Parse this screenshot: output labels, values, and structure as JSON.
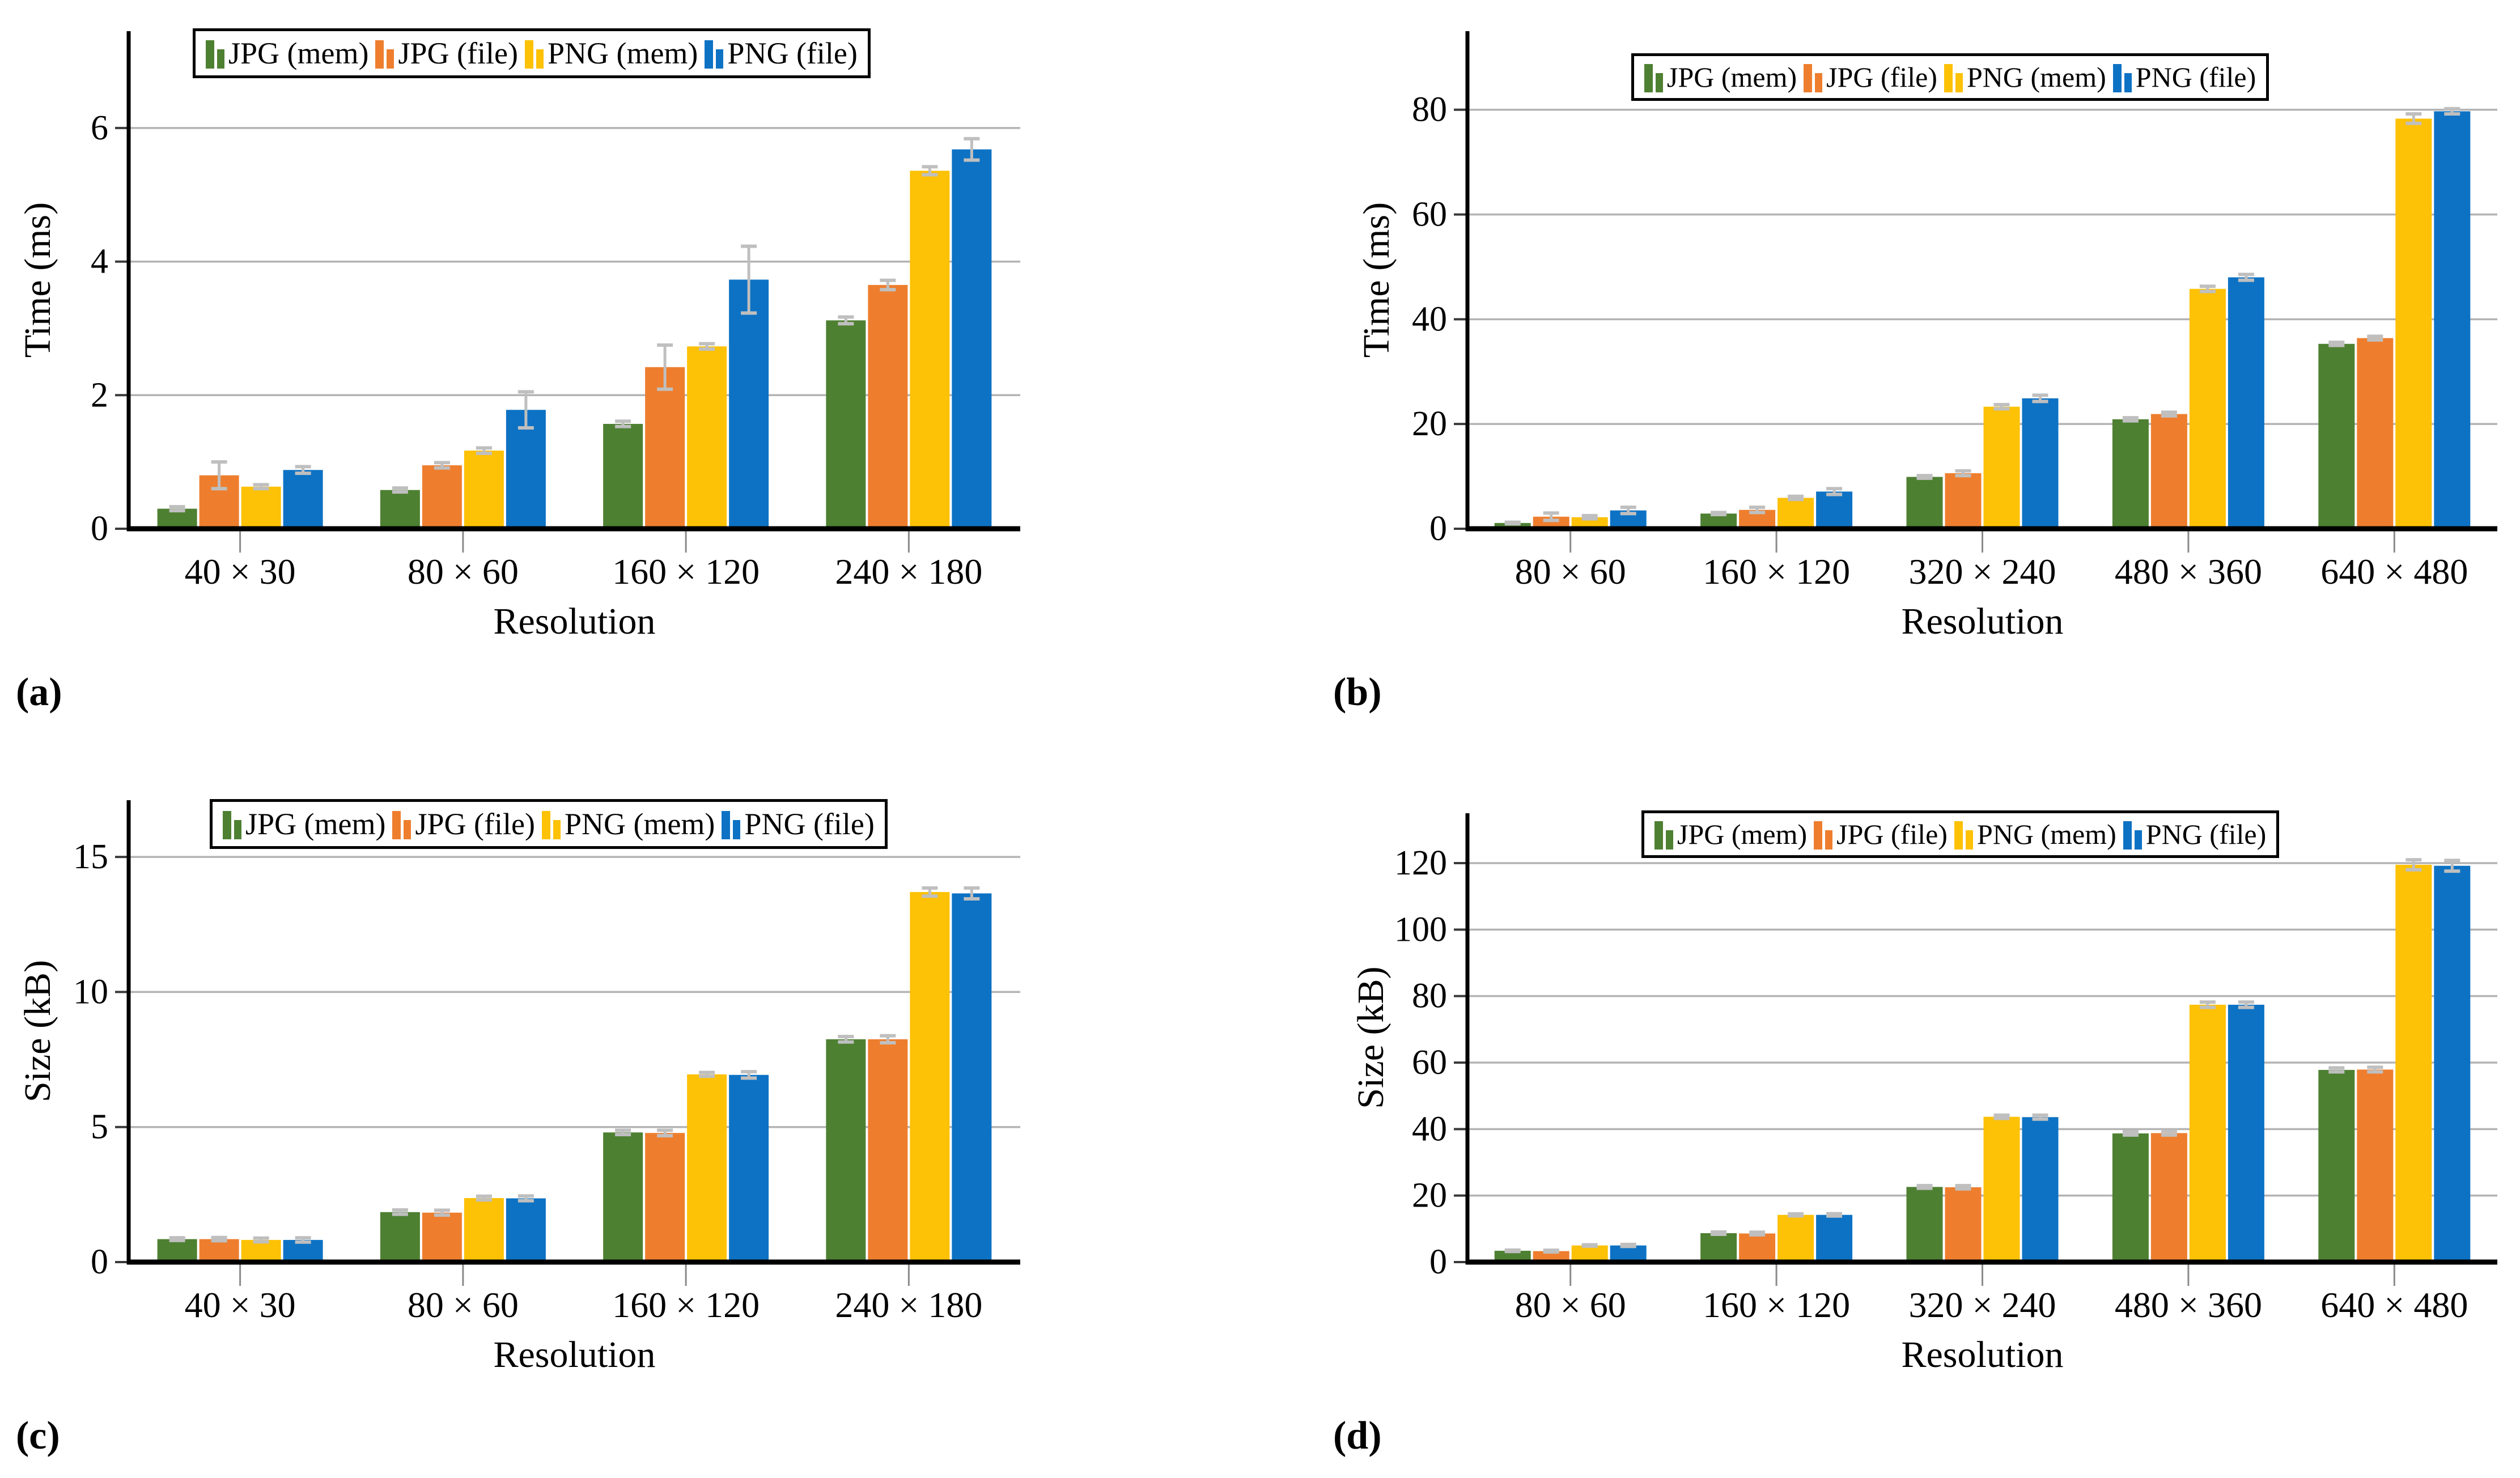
{
  "page": {
    "background": "#ffffff"
  },
  "palette": {
    "jpg_mem": "#4E8032",
    "jpg_file": "#EE7E2E",
    "png_mem": "#FDC105",
    "png_file": "#0D72C4",
    "error_bar": "#BFBFBF",
    "gridline": "#B3B3B3",
    "axis": "#000000",
    "x_tick": "#8A8A8A",
    "y_tick": "#3A3A3A"
  },
  "legend_labels": [
    "JPG (mem)",
    "JPG (file)",
    "PNG (mem)",
    "PNG (file)"
  ],
  "chart_data": [
    {
      "panel_label": "(a)",
      "type": "bar",
      "xlabel": "Resolution",
      "ylabel": "Time (ms)",
      "categories": [
        "40 × 30",
        "80 × 60",
        "160 × 120",
        "240 × 180"
      ],
      "yticks": [
        0,
        2,
        4,
        6
      ],
      "ylim": [
        0,
        7.45
      ],
      "grid": true,
      "error_bars": true,
      "legend_position": "top-inside",
      "series": [
        {
          "name": "JPG (mem)",
          "color_key": "jpg_mem",
          "values": [
            0.3,
            0.58,
            1.57,
            3.12
          ],
          "errors": [
            0.03,
            0.03,
            0.04,
            0.05
          ]
        },
        {
          "name": "JPG (file)",
          "color_key": "jpg_file",
          "values": [
            0.8,
            0.95,
            2.42,
            3.65
          ],
          "errors": [
            0.2,
            0.04,
            0.33,
            0.07
          ]
        },
        {
          "name": "PNG (mem)",
          "color_key": "png_mem",
          "values": [
            0.63,
            1.17,
            2.73,
            5.36
          ],
          "errors": [
            0.03,
            0.04,
            0.04,
            0.06
          ]
        },
        {
          "name": "PNG (file)",
          "color_key": "png_file",
          "values": [
            0.88,
            1.78,
            3.73,
            5.68
          ],
          "errors": [
            0.05,
            0.27,
            0.5,
            0.16
          ]
        }
      ]
    },
    {
      "panel_label": "(b)",
      "type": "bar",
      "xlabel": "Resolution",
      "ylabel": "Time (ms)",
      "categories": [
        "80 × 60",
        "160 × 120",
        "320 × 240",
        "480 × 360",
        "640 × 480"
      ],
      "yticks": [
        0,
        20,
        40,
        60,
        80
      ],
      "ylim": [
        0,
        95
      ],
      "grid": true,
      "error_bars": true,
      "legend_position": "top-inside",
      "series": [
        {
          "name": "JPG (mem)",
          "color_key": "jpg_mem",
          "values": [
            1.1,
            2.9,
            9.9,
            20.9,
            35.3
          ],
          "errors": [
            0.15,
            0.2,
            0.25,
            0.3,
            0.3
          ]
        },
        {
          "name": "JPG (file)",
          "color_key": "jpg_file",
          "values": [
            2.3,
            3.6,
            10.6,
            21.9,
            36.4
          ],
          "errors": [
            0.7,
            0.5,
            0.45,
            0.35,
            0.35
          ]
        },
        {
          "name": "PNG (mem)",
          "color_key": "png_mem",
          "values": [
            2.2,
            5.9,
            23.3,
            45.8,
            78.3
          ],
          "errors": [
            0.3,
            0.3,
            0.4,
            0.5,
            0.9
          ]
        },
        {
          "name": "PNG (file)",
          "color_key": "png_file",
          "values": [
            3.5,
            7.1,
            24.9,
            48.0,
            79.7
          ],
          "errors": [
            0.6,
            0.55,
            0.6,
            0.55,
            0.5
          ]
        }
      ]
    },
    {
      "panel_label": "(c)",
      "type": "bar",
      "xlabel": "Resolution",
      "ylabel": "Size (kB)",
      "categories": [
        "40 × 30",
        "80 × 60",
        "160 × 120",
        "240 × 180"
      ],
      "yticks": [
        0,
        5,
        10,
        15
      ],
      "ylim": [
        0,
        17.1
      ],
      "grid": true,
      "error_bars": true,
      "legend_position": "top-inside",
      "series": [
        {
          "name": "JPG (mem)",
          "color_key": "jpg_mem",
          "values": [
            0.85,
            1.85,
            4.8,
            8.25
          ],
          "errors": [
            0.05,
            0.08,
            0.08,
            0.1
          ]
        },
        {
          "name": "JPG (file)",
          "color_key": "jpg_file",
          "values": [
            0.85,
            1.83,
            4.78,
            8.25
          ],
          "errors": [
            0.06,
            0.09,
            0.1,
            0.13
          ]
        },
        {
          "name": "PNG (mem)",
          "color_key": "png_mem",
          "values": [
            0.82,
            2.37,
            6.95,
            13.7
          ],
          "errors": [
            0.07,
            0.07,
            0.07,
            0.15
          ]
        },
        {
          "name": "PNG (file)",
          "color_key": "png_file",
          "values": [
            0.82,
            2.36,
            6.93,
            13.65
          ],
          "errors": [
            0.08,
            0.09,
            0.12,
            0.2
          ]
        }
      ]
    },
    {
      "panel_label": "(d)",
      "type": "bar",
      "xlabel": "Resolution",
      "ylabel": "Size (kB)",
      "categories": [
        "80 × 60",
        "160 × 120",
        "320 × 240",
        "480 × 360",
        "640 × 480"
      ],
      "yticks": [
        0,
        20,
        40,
        60,
        80,
        100,
        120
      ],
      "ylim": [
        0,
        135
      ],
      "grid": true,
      "error_bars": true,
      "legend_position": "top-inside",
      "series": [
        {
          "name": "JPG (mem)",
          "color_key": "jpg_mem",
          "values": [
            3.4,
            8.7,
            22.6,
            38.7,
            57.8
          ],
          "errors": [
            0.2,
            0.35,
            0.4,
            0.5,
            0.6
          ]
        },
        {
          "name": "JPG (file)",
          "color_key": "jpg_file",
          "values": [
            3.3,
            8.6,
            22.5,
            38.8,
            57.9
          ],
          "errors": [
            0.25,
            0.4,
            0.5,
            0.6,
            0.7
          ]
        },
        {
          "name": "PNG (mem)",
          "color_key": "png_mem",
          "values": [
            5.0,
            14.2,
            43.7,
            77.4,
            119.5
          ],
          "errors": [
            0.2,
            0.3,
            0.5,
            0.8,
            1.5
          ]
        },
        {
          "name": "PNG (file)",
          "color_key": "png_file",
          "values": [
            5.0,
            14.2,
            43.6,
            77.4,
            119.2
          ],
          "errors": [
            0.3,
            0.35,
            0.6,
            0.8,
            1.6
          ]
        }
      ]
    }
  ]
}
